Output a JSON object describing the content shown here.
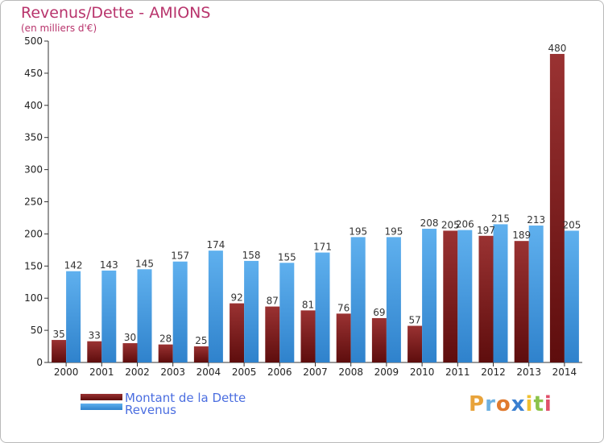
{
  "title": "Revenus/Dette - AMIONS",
  "subtitle": "(en milliers d'€)",
  "logo": {
    "text": "Proxiti",
    "letter_colors": [
      "#e8a33a",
      "#6db0e0",
      "#e07a2e",
      "#3a7fd0",
      "#f0c030",
      "#8bc34a",
      "#e0506a"
    ]
  },
  "colors": {
    "dette": "#7a1f1f",
    "dette_light": "#a33a3a",
    "revenus": "#3d8fd8",
    "revenus_light": "#5fb0ee",
    "axis": "#333333",
    "grid": "#dddddd"
  },
  "chart_data": {
    "type": "bar",
    "title": "Revenus/Dette - AMIONS",
    "subtitle": "(en milliers d'€)",
    "xlabel": "",
    "ylabel": "",
    "ylim": [
      0,
      500
    ],
    "yticks": [
      0,
      50,
      100,
      150,
      200,
      250,
      300,
      350,
      400,
      450,
      500
    ],
    "grid": false,
    "legend": "bottom-left",
    "categories": [
      "2000",
      "2001",
      "2002",
      "2003",
      "2004",
      "2005",
      "2006",
      "2007",
      "2008",
      "2009",
      "2010",
      "2011",
      "2012",
      "2013",
      "2014"
    ],
    "series": [
      {
        "name": "Montant de la Dette",
        "values": [
          35,
          33,
          30,
          28,
          25,
          92,
          87,
          81,
          76,
          69,
          57,
          205,
          197,
          189,
          480
        ]
      },
      {
        "name": "Revenus",
        "values": [
          142,
          143,
          145,
          157,
          174,
          158,
          155,
          171,
          195,
          195,
          208,
          206,
          215,
          213,
          205
        ]
      }
    ]
  }
}
